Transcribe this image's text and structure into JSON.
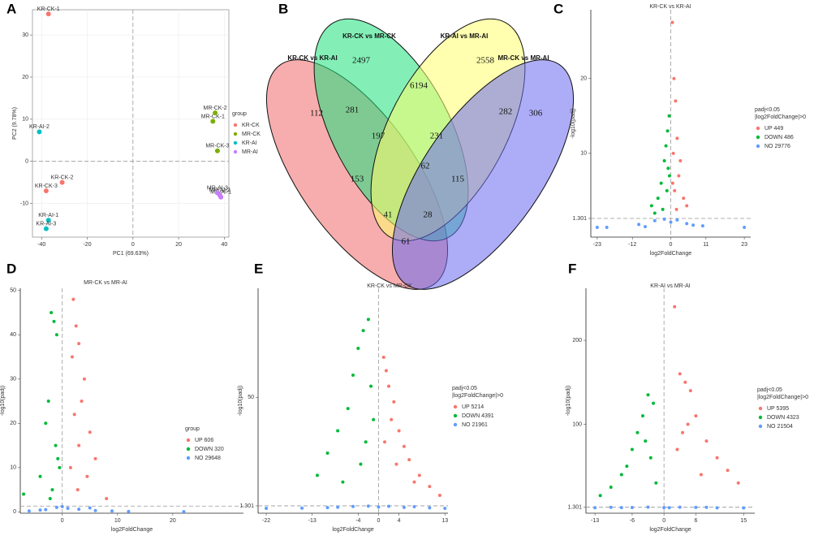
{
  "chart_data": [
    {
      "type": "scatter",
      "panel": "A",
      "xlabel": "PC1 (69.63%)",
      "ylabel": "PC2 (9.78%)",
      "xlim": [
        -44,
        42
      ],
      "ylim": [
        -18,
        36
      ],
      "xticks": [
        -40,
        -20,
        0,
        20,
        40
      ],
      "yticks": [
        -10,
        0,
        10,
        20,
        30
      ],
      "grid": true,
      "hline": 0,
      "vline": 0,
      "legend_title": [
        "group"
      ],
      "series": [
        {
          "name": "KR-CK",
          "color": "#f8766d",
          "x": [
            -37,
            -31,
            -38
          ],
          "y": [
            35,
            -5,
            -7
          ],
          "labels": [
            "KR-CK-1",
            "KR-CK-2",
            "KR-CK-3"
          ]
        },
        {
          "name": "MR-CK",
          "color": "#7cae00",
          "x": [
            35,
            36,
            37
          ],
          "y": [
            9.5,
            11.5,
            2.5
          ],
          "labels": [
            "MR-CK-1",
            "MR-CK-2",
            "MR-CK-3"
          ]
        },
        {
          "name": "KR-AI",
          "color": "#00bfc4",
          "x": [
            -37,
            -41,
            -38
          ],
          "y": [
            -14,
            7,
            -16
          ],
          "labels": [
            "KR-AI-1",
            "KR-AI-2",
            "KR-AI-3"
          ]
        },
        {
          "name": "MR-AI",
          "color": "#c77cff",
          "x": [
            38.5,
            38,
            37
          ],
          "y": [
            -8.5,
            -8,
            -7.5
          ],
          "labels": [
            "MR-AI-1",
            "MR-AI-2",
            "MR-AI-3"
          ]
        }
      ]
    },
    {
      "type": "venn",
      "panel": "B",
      "sets": [
        {
          "name": "KR-CK vs KR-AI",
          "color": "#f06a6a"
        },
        {
          "name": "KR-CK vs MR-CK",
          "color": "#1de27c"
        },
        {
          "name": "KR-AI vs MR-AI",
          "color": "#ffff6e"
        },
        {
          "name": "MR-CK vs MR-AI",
          "color": "#6a6af0"
        }
      ],
      "regions": [
        112,
        2497,
        2558,
        306,
        281,
        6194,
        282,
        197,
        231,
        153,
        62,
        115,
        41,
        28,
        61
      ]
    },
    {
      "type": "scatter",
      "panel": "C",
      "title": "KR-CK vs KR-AI",
      "xlabel": "log2FoldChange",
      "ylabel": "-log10(padj)",
      "xlim": [
        -25,
        25
      ],
      "ylim": [
        -1.2,
        29.2
      ],
      "xticks": [
        -23,
        -12,
        0,
        11,
        23
      ],
      "yticks": [
        1.301,
        10,
        20
      ],
      "grid": false,
      "hline": 1.301,
      "vline": 0,
      "legend_title": [
        "padj<0.05",
        "|log2FoldChange|>0"
      ],
      "series": [
        {
          "name": "UP 449",
          "color": "#f8766d",
          "x": [
            0.5,
            1,
            1.5,
            2,
            0.8,
            3,
            2.5,
            1.2,
            4,
            0.6,
            5,
            1.8
          ],
          "y": [
            27.5,
            20,
            17,
            12,
            10,
            9,
            7,
            5,
            4,
            6,
            3,
            2.5
          ]
        },
        {
          "name": "DOWN 486",
          "color": "#00ba38",
          "x": [
            -0.5,
            -1,
            -1.5,
            -2,
            -0.8,
            -3,
            -4,
            -6,
            -1.2,
            -2.5,
            -5,
            -0.4
          ],
          "y": [
            15,
            13,
            11,
            9,
            8,
            6,
            4,
            3,
            5,
            2.5,
            2,
            7
          ]
        },
        {
          "name": "NO 29776",
          "color": "#619cff",
          "x": [
            -23,
            -20,
            -10,
            -5,
            -2,
            0,
            2,
            5,
            10,
            23,
            -8,
            7
          ],
          "y": [
            0.1,
            0.1,
            0.5,
            1,
            1.2,
            0.8,
            1.1,
            0.6,
            0.3,
            0.1,
            0.2,
            0.4
          ]
        }
      ]
    },
    {
      "type": "scatter",
      "panel": "D",
      "title": "MR-CK vs MR-AI",
      "xlabel": "log2FoldChange",
      "ylabel": "-log10(padj)",
      "xlim": [
        -7.6,
        32.8
      ],
      "ylim": [
        -0.3,
        50.5
      ],
      "xticks": [
        0,
        10,
        20
      ],
      "yticks": [
        0,
        10,
        20,
        30,
        40,
        50
      ],
      "grid": false,
      "hline": 1.301,
      "vline": 0,
      "legend_title": [
        "group"
      ],
      "series": [
        {
          "name": "UP 606",
          "color": "#f8766d",
          "x": [
            2,
            2.5,
            3,
            1.8,
            4,
            3.5,
            2.2,
            5,
            6,
            3,
            1.5,
            4.5,
            2.8,
            8
          ],
          "y": [
            48,
            42,
            38,
            35,
            30,
            25,
            22,
            18,
            12,
            15,
            10,
            8,
            5,
            3
          ]
        },
        {
          "name": "DOWN 320",
          "color": "#00ba38",
          "x": [
            -2,
            -1.5,
            -1,
            -2.5,
            -3,
            -1.2,
            -0.8,
            -4,
            -1.8,
            -7,
            -2.2,
            -0.5
          ],
          "y": [
            45,
            43,
            40,
            25,
            20,
            15,
            12,
            8,
            5,
            4,
            3,
            10
          ]
        },
        {
          "name": "NO 29648",
          "color": "#619cff",
          "x": [
            -6,
            -3,
            -1,
            0,
            1,
            3,
            6,
            9,
            12,
            22,
            -4,
            5
          ],
          "y": [
            0.2,
            0.5,
            1,
            1.2,
            0.8,
            0.6,
            0.3,
            0.2,
            0.1,
            0.05,
            0.4,
            0.9
          ]
        }
      ]
    },
    {
      "type": "scatter",
      "panel": "E",
      "title": "KR-CK vs MR-CK",
      "xlabel": "log2FoldChange",
      "ylabel": "-log10(padj)",
      "xlim": [
        -23.6,
        13.6
      ],
      "ylim": [
        -2,
        99
      ],
      "xticks": [
        -22,
        -13,
        -4,
        0,
        4,
        13
      ],
      "yticks": [
        1.301,
        50
      ],
      "grid": false,
      "hline": 1.301,
      "vline": 0,
      "legend_title": [
        "padj<0.05",
        "|log2FoldChange|>0"
      ],
      "series": [
        {
          "name": "UP 5214",
          "color": "#f8766d",
          "x": [
            1,
            1.5,
            2,
            3,
            2.5,
            4,
            5,
            6,
            8,
            10,
            12,
            1.2,
            3.5,
            7
          ],
          "y": [
            68,
            62,
            55,
            48,
            40,
            35,
            28,
            22,
            15,
            10,
            6,
            30,
            20,
            12
          ]
        },
        {
          "name": "DOWN 4391",
          "color": "#00ba38",
          "x": [
            -2,
            -3,
            -4,
            -5,
            -1.5,
            -6,
            -8,
            -10,
            -2.5,
            -3.5,
            -7,
            -1,
            -12
          ],
          "y": [
            85,
            80,
            72,
            60,
            55,
            45,
            35,
            25,
            30,
            20,
            12,
            40,
            15
          ]
        },
        {
          "name": "NO 21961",
          "color": "#619cff",
          "x": [
            -22,
            -15,
            -10,
            -5,
            -2,
            0,
            2,
            5,
            10,
            13,
            -8,
            7
          ],
          "y": [
            0.2,
            0.3,
            0.5,
            1,
            1.2,
            0.8,
            1.1,
            0.6,
            0.4,
            0.2,
            0.7,
            0.9
          ]
        }
      ]
    },
    {
      "type": "scatter",
      "panel": "F",
      "title": "KR-AI vs MR-AI",
      "xlabel": "log2FoldChange",
      "ylabel": "-log10(padj)",
      "xlim": [
        -14.7,
        17.1
      ],
      "ylim": [
        -6,
        262
      ],
      "xticks": [
        -13,
        -6,
        0,
        6,
        15
      ],
      "yticks": [
        1.301,
        100,
        200
      ],
      "grid": false,
      "hline": 1.301,
      "vline": 0,
      "legend_title": [
        "padj<0.05",
        "|log2FoldChange|>0"
      ],
      "series": [
        {
          "name": "UP 5395",
          "color": "#f8766d",
          "x": [
            2,
            3,
            4,
            5,
            6,
            3.5,
            8,
            10,
            12,
            14,
            2.5,
            4.5,
            7
          ],
          "y": [
            240,
            160,
            150,
            140,
            110,
            90,
            80,
            60,
            45,
            30,
            70,
            100,
            40
          ]
        },
        {
          "name": "DOWN 4323",
          "color": "#00ba38",
          "x": [
            -2,
            -3,
            -4,
            -5,
            -6,
            -7,
            -8,
            -10,
            -12,
            -2.5,
            -3.5,
            -1.5
          ],
          "y": [
            125,
            135,
            110,
            90,
            70,
            50,
            40,
            25,
            15,
            60,
            80,
            30
          ]
        },
        {
          "name": "NO 21504",
          "color": "#619cff",
          "x": [
            -13,
            -10,
            -6,
            -3,
            0,
            3,
            6,
            10,
            15,
            -8,
            8,
            1
          ],
          "y": [
            0.5,
            1,
            0.8,
            1.2,
            0.6,
            1.1,
            0.9,
            0.4,
            0.3,
            0.7,
            1,
            0.5
          ]
        }
      ]
    }
  ]
}
